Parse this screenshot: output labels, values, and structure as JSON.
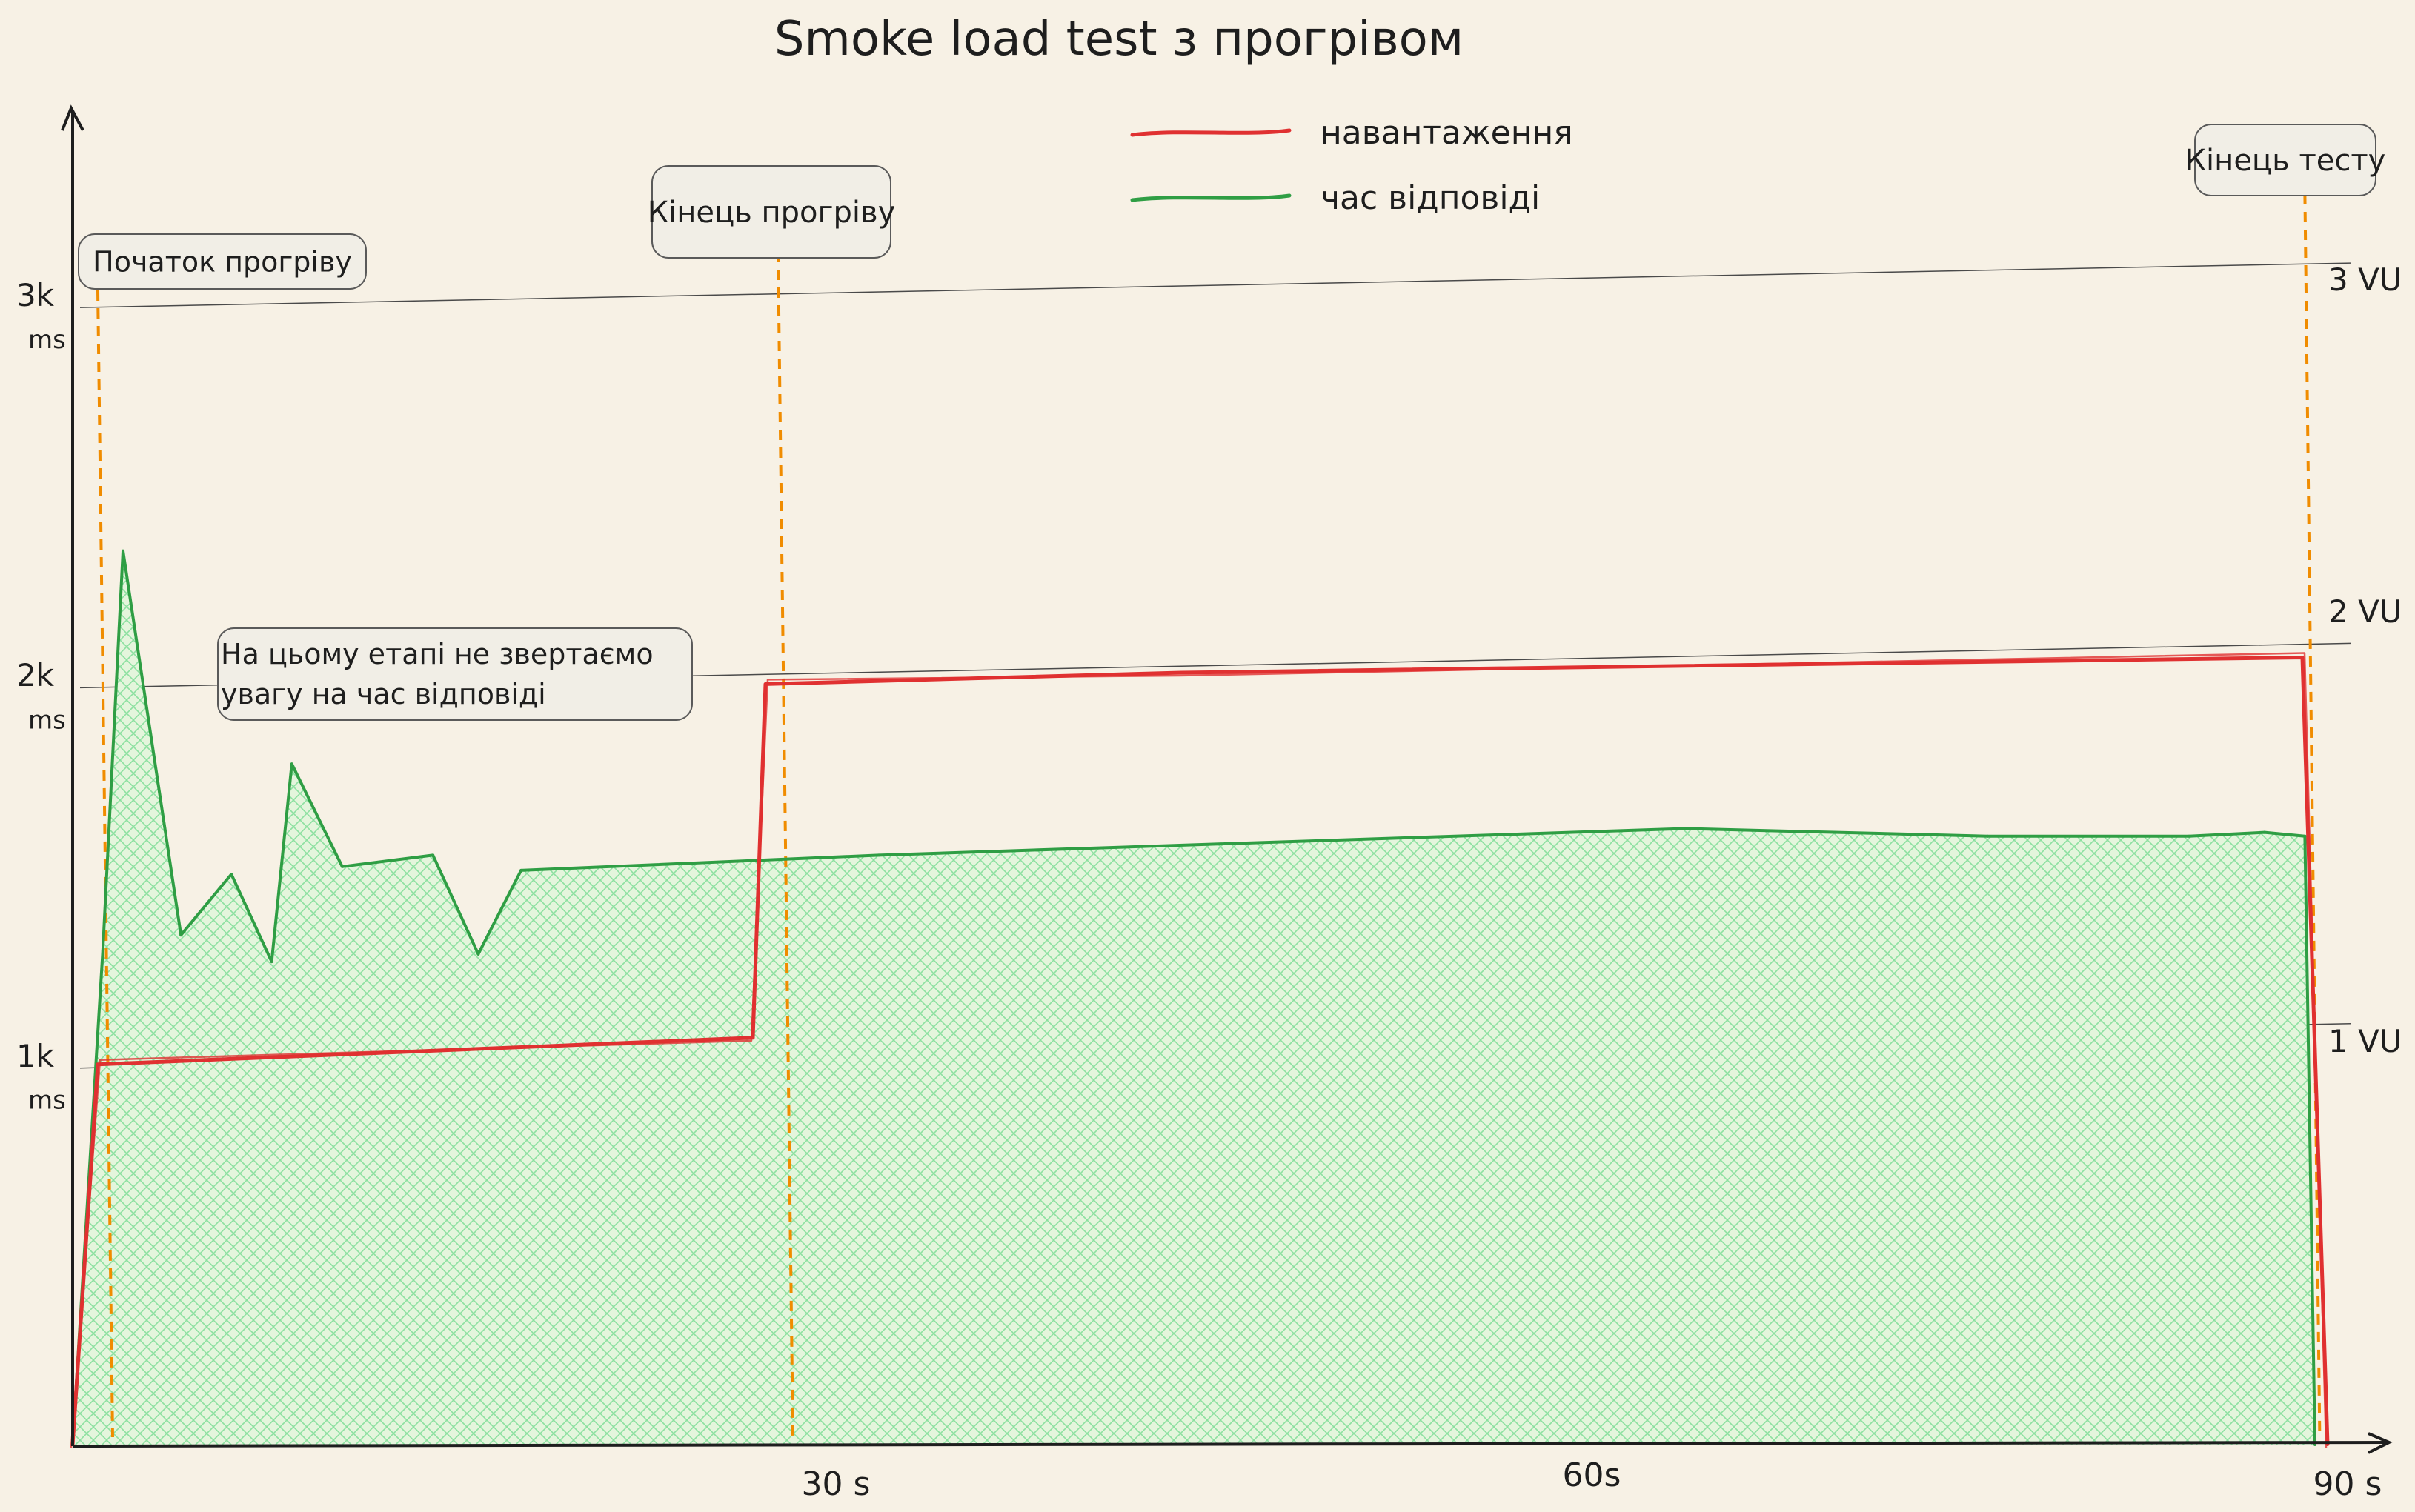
{
  "chart_data": {
    "type": "line",
    "title": "Smoke load test з прогрівом",
    "x_unit": "s",
    "xlim": [
      0,
      90
    ],
    "x_ticks": [
      {
        "value": 30,
        "label": "30 s"
      },
      {
        "value": 60,
        "label": "60s"
      },
      {
        "value": 90,
        "label": "90 s"
      }
    ],
    "y_left": {
      "range": [
        0,
        3500
      ],
      "ticks": [
        {
          "value": 1000,
          "label": "1k",
          "unit": "ms"
        },
        {
          "value": 2000,
          "label": "2k",
          "unit": "ms"
        },
        {
          "value": 3000,
          "label": "3k",
          "unit": "ms"
        }
      ]
    },
    "y_right": {
      "range": [
        0,
        3.5
      ],
      "ticks": [
        {
          "value": 1,
          "label": "1 VU"
        },
        {
          "value": 2,
          "label": "2 VU"
        },
        {
          "value": 3,
          "label": "3 VU"
        }
      ]
    },
    "legend_position": "top-center",
    "series": [
      {
        "name": "навантаження",
        "axis": "right",
        "color": "#e03131",
        "x": [
          0,
          1,
          27,
          27.5,
          44,
          88.5,
          89.5
        ],
        "values": [
          0,
          1.0,
          1.07,
          2.0,
          2.03,
          2.07,
          0
        ]
      },
      {
        "name": "час відповіді",
        "axis": "left",
        "color": "#2f9e44",
        "fill_color": "#b2f2bb",
        "x": [
          0,
          1.2,
          2,
          4.3,
          6.3,
          7.9,
          8.7,
          10.7,
          14.3,
          16.1,
          17.8,
          32,
          64,
          76,
          84,
          87,
          88.6,
          89
        ],
        "values": [
          0,
          1300,
          2350,
          1340,
          1500,
          1270,
          1790,
          1520,
          1550,
          1290,
          1510,
          1550,
          1620,
          1600,
          1600,
          1610,
          1600,
          0
        ]
      }
    ],
    "markers": [
      {
        "x": 1,
        "label": "Початок прогріву"
      },
      {
        "x": 28,
        "label": "Кінець прогріву"
      },
      {
        "x": 88.6,
        "label": "Кінець тесту"
      }
    ],
    "annotations": [
      {
        "text_lines": [
          "На цьому етапі не звертаємо",
          "увагу на час відповіді"
        ]
      }
    ]
  }
}
